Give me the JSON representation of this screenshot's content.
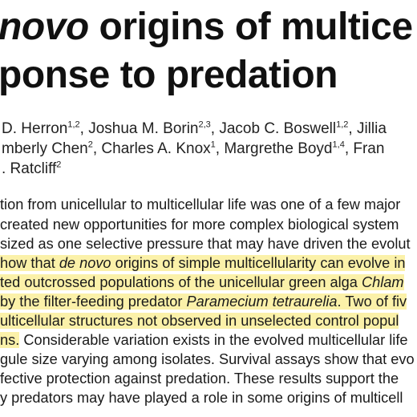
{
  "title": {
    "line1_italic": "novo",
    "line1_rest": " origins of multice",
    "line2": "ponse to predation"
  },
  "authors": {
    "line1": {
      "a1_name": "D. Herron",
      "a1_sup": "1,2",
      "a2_name": ", Joshua M. Borin",
      "a2_sup": "2,3",
      "a3_name": ", Jacob C. Boswell",
      "a3_sup": "1,2",
      "a4_name": ", Jillia"
    },
    "line2": {
      "a1_name": "mberly Chen",
      "a1_sup": "2",
      "a2_name": ", Charles A. Knox",
      "a2_sup": "1",
      "a3_name": ", Margrethe Boyd",
      "a3_sup": "1,4",
      "a4_name": ", Fran"
    },
    "line3": {
      "a1_name": ". Ratcliff",
      "a1_sup": "2"
    }
  },
  "abstract": {
    "l1": "tion from unicellular to multicellular life was one of a few major",
    "l2": " created new opportunities for more complex biological system",
    "l3": "sized as one selective pressure that may have driven the evolut",
    "l4_a": "how that ",
    "l4_i": "de novo",
    "l4_b": " origins of simple multicellularity can evolve in",
    "l5_a": "ted outcrossed populations of the unicellular green alga ",
    "l5_i": "Chlam",
    "l6_a": "by the filter-feeding predator ",
    "l6_i": "Paramecium tetraurelia",
    "l6_b": ". Two of fiv",
    "l7": "ulticellular structures not observed in unselected control popul",
    "l8_hl": "ns.",
    "l8_rest": " Considerable variation exists in the evolved multicellular life",
    "l9": "gule size varying among isolates. Survival assays show that evo",
    "l10": "fective protection against predation. These results support the",
    "l11": "y predators may have played a role in some origins of multicell"
  }
}
